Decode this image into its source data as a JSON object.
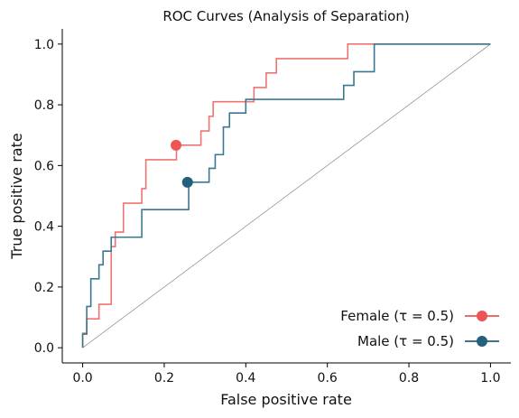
{
  "chart_data": {
    "type": "line",
    "title": "ROC Curves (Analysis of Separation)",
    "xlabel": "False positive rate",
    "ylabel": "True positive rate",
    "xlim": [
      -0.05,
      1.05
    ],
    "ylim": [
      -0.05,
      1.05
    ],
    "xticks": [
      0.0,
      0.2,
      0.4,
      0.6,
      0.8,
      1.0
    ],
    "xtick_labels": [
      "0.0",
      "0.2",
      "0.4",
      "0.6",
      "0.8",
      "1.0"
    ],
    "yticks": [
      0.0,
      0.2,
      0.4,
      0.6,
      0.8,
      1.0
    ],
    "ytick_labels": [
      "0.0",
      "0.2",
      "0.4",
      "0.6",
      "0.8",
      "1.0"
    ],
    "grid": false,
    "legend_position": "bottom-right",
    "diagonal": {
      "x": [
        0,
        1
      ],
      "y": [
        0,
        1
      ],
      "color": "#888888"
    },
    "series": [
      {
        "name": "Female (τ = 0.5)",
        "color": "#ef5455",
        "line_color": "#f07373",
        "x": [
          0,
          0,
          0.01,
          0.01,
          0.04,
          0.04,
          0.07,
          0.07,
          0.08,
          0.08,
          0.1,
          0.1,
          0.145,
          0.145,
          0.155,
          0.155,
          0.23,
          0.23,
          0.29,
          0.29,
          0.31,
          0.31,
          0.32,
          0.32,
          0.42,
          0.42,
          0.43,
          0.43,
          0.45,
          0.45,
          0.475,
          0.475,
          0.65,
          0.65,
          1.0
        ],
        "y": [
          0,
          0.048,
          0.048,
          0.095,
          0.095,
          0.143,
          0.143,
          0.333,
          0.333,
          0.381,
          0.381,
          0.476,
          0.476,
          0.524,
          0.524,
          0.619,
          0.619,
          0.667,
          0.667,
          0.714,
          0.714,
          0.762,
          0.762,
          0.81,
          0.81,
          0.857,
          0.857,
          0.857,
          0.857,
          0.905,
          0.905,
          0.952,
          0.952,
          1.0,
          1.0
        ],
        "marker": {
          "x": 0.229,
          "y": 0.667
        }
      },
      {
        "name": "Male (τ = 0.5)",
        "color": "#23607a",
        "line_color": "#3a7890",
        "x": [
          0,
          0,
          0.01,
          0.01,
          0.02,
          0.02,
          0.04,
          0.04,
          0.05,
          0.05,
          0.065,
          0.065,
          0.07,
          0.07,
          0.145,
          0.145,
          0.26,
          0.26,
          0.31,
          0.31,
          0.325,
          0.325,
          0.345,
          0.345,
          0.36,
          0.36,
          0.37,
          0.37,
          0.4,
          0.4,
          0.64,
          0.64,
          0.665,
          0.665,
          0.715,
          0.715,
          1.0
        ],
        "y": [
          0,
          0.045,
          0.045,
          0.136,
          0.136,
          0.227,
          0.227,
          0.273,
          0.273,
          0.318,
          0.318,
          0.318,
          0.318,
          0.364,
          0.364,
          0.455,
          0.455,
          0.545,
          0.545,
          0.591,
          0.591,
          0.636,
          0.636,
          0.727,
          0.727,
          0.773,
          0.773,
          0.773,
          0.773,
          0.818,
          0.818,
          0.864,
          0.864,
          0.909,
          0.909,
          1.0,
          1.0
        ],
        "marker": {
          "x": 0.257,
          "y": 0.545
        }
      }
    ]
  }
}
